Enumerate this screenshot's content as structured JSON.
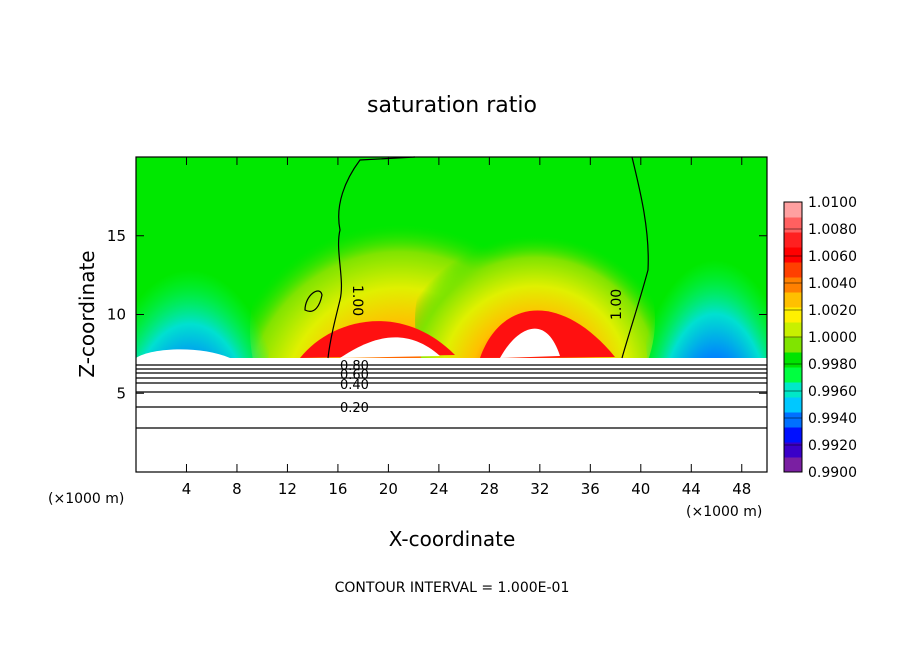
{
  "chart_data": {
    "type": "heatmap",
    "title": "saturation ratio",
    "xlabel": "X-coordinate",
    "ylabel": "Z-coordinate",
    "x_unit": "(×1000 m)",
    "z_unit": "(×1000 m)",
    "xlim": [
      0,
      50
    ],
    "ylim": [
      0,
      20
    ],
    "x_ticks": [
      "4",
      "8",
      "12",
      "16",
      "20",
      "24",
      "28",
      "32",
      "36",
      "40",
      "44",
      "48"
    ],
    "y_ticks": [
      "5",
      "10",
      "15"
    ],
    "colorbar": {
      "min": 0.99,
      "max": 1.01,
      "labels": [
        "1.0100",
        "1.0080",
        "1.0060",
        "1.0040",
        "1.0020",
        "1.0000",
        "0.9980",
        "0.9960",
        "0.9940",
        "0.9920",
        "0.9900"
      ],
      "colors": [
        "#7a1fa2",
        "#3a00c8",
        "#0010ff",
        "#0070ff",
        "#00c8ff",
        "#00e8c8",
        "#00ff40",
        "#00e400",
        "#80e400",
        "#c8f000",
        "#fff000",
        "#ffc000",
        "#ff8000",
        "#ff4000",
        "#ff0000",
        "#ff2020",
        "#ff6060",
        "#ffa0a0"
      ]
    },
    "contour_labels": [
      "1.00",
      "1.00",
      "0.80",
      "0.60",
      "0.40",
      "0.20"
    ],
    "contour_interval_text": "CONTOUR INTERVAL = 1.000E-01",
    "grid": false
  }
}
